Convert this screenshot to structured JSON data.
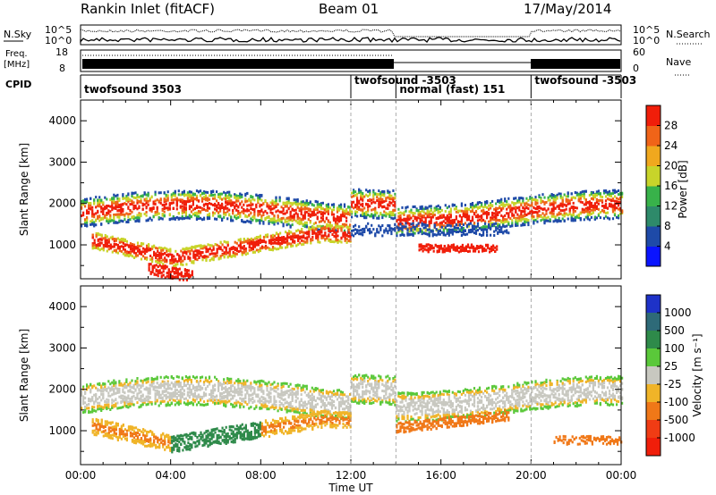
{
  "header": {
    "title": "Rankin Inlet (fitACF)",
    "beam": "Beam 01",
    "date": "17/May/2014"
  },
  "strips": {
    "nsky_label": "N.Sky",
    "nsearch_label": "N.Search",
    "nsky_ticks": [
      "10^5",
      "10^0"
    ],
    "freq_label": "Freq.",
    "freq_unit": "[MHz]",
    "freq_ticks": [
      "18",
      "8"
    ],
    "nave_label": "Nave",
    "nave_ticks": [
      "60",
      "0"
    ],
    "cpid_label": "CPID"
  },
  "cpid_segments": [
    {
      "label": "twofsound 3503",
      "start_hour": 0,
      "end_hour": 12
    },
    {
      "label": "twofsound -3503",
      "start_hour": 12,
      "end_hour": 14
    },
    {
      "label": "normal (fast) 151",
      "start_hour": 14,
      "end_hour": 20
    },
    {
      "label": "twofsound -3503",
      "start_hour": 20,
      "end_hour": 24
    }
  ],
  "chart_data": [
    {
      "type": "heatmap",
      "title": "",
      "xlabel": "Time UT",
      "ylabel": "Slant Range [km]",
      "x_ticks": [
        "00:00",
        "04:00",
        "08:00",
        "12:00",
        "16:00",
        "20:00",
        "00:00"
      ],
      "xlim_hours": [
        0,
        24
      ],
      "y_ticks": [
        1000,
        2000,
        3000,
        4000
      ],
      "ylim": [
        180,
        4500
      ],
      "colorbar_label": "Power [dB]",
      "colorbar_ticks": [
        4,
        8,
        12,
        16,
        20,
        24,
        28
      ],
      "colorbar_range": [
        0,
        32
      ],
      "colors": [
        "#0a14ff",
        "#1e4aa8",
        "#2e8a6a",
        "#38b24a",
        "#c8d42a",
        "#f0a81e",
        "#f06418",
        "#f01e0a"
      ]
    },
    {
      "type": "heatmap",
      "title": "",
      "xlabel": "Time UT",
      "ylabel": "Slant Range [km]",
      "x_ticks": [
        "00:00",
        "04:00",
        "08:00",
        "12:00",
        "16:00",
        "20:00",
        "00:00"
      ],
      "xlim_hours": [
        0,
        24
      ],
      "y_ticks": [
        1000,
        2000,
        3000,
        4000
      ],
      "ylim": [
        180,
        4500
      ],
      "colorbar_label": "Velocity [m s⁻¹]",
      "colorbar_ticks": [
        "1000",
        "500",
        "100",
        "25",
        "-25",
        "-100",
        "-500",
        "-1000"
      ],
      "colors": [
        "#1e32c8",
        "#2e6a78",
        "#2e8a4a",
        "#5ac83a",
        "#c8c8c0",
        "#f0b428",
        "#f07818",
        "#f03c14",
        "#f01e0a"
      ]
    }
  ]
}
